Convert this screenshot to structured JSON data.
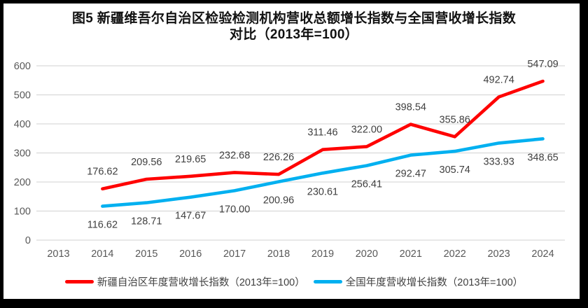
{
  "title": {
    "line1": "图5  新疆维吾尔自治区检验检测机构营收总额增长指数与全国营收增长指数",
    "line2": "对比（2013年=100）"
  },
  "colors": {
    "xinjiang_line": "#ff0000",
    "national_line": "#00b0f0",
    "gridline": "#d9d9d9",
    "axis_text": "#595959",
    "label_text": "#404040",
    "title_text": "#111111",
    "frame_border": "#000000"
  },
  "chart_data": {
    "type": "line",
    "categories": [
      "2013",
      "2014",
      "2015",
      "2016",
      "2017",
      "2018",
      "2019",
      "2020",
      "2021",
      "2022",
      "2023",
      "2024"
    ],
    "series": [
      {
        "id": "xinjiang",
        "name": "新疆自治区年度营收增长指数（2013年=100）",
        "color": "#ff0000",
        "label_position": "above",
        "values": [
          null,
          176.62,
          209.56,
          219.65,
          232.68,
          226.26,
          311.46,
          322.0,
          398.54,
          355.86,
          492.74,
          547.09
        ]
      },
      {
        "id": "national",
        "name": "全国年度营收增长指数（2013年=100）",
        "color": "#00b0f0",
        "label_position": "below",
        "values": [
          null,
          116.62,
          128.71,
          147.67,
          170.0,
          200.96,
          230.61,
          256.41,
          292.47,
          305.74,
          333.93,
          348.65
        ]
      }
    ],
    "ylim": [
      0,
      600
    ],
    "ytick_step": 100,
    "yticks": [
      0,
      100,
      200,
      300,
      400,
      500,
      600
    ],
    "grid": true,
    "legend_position": "bottom",
    "title": "图5 新疆维吾尔自治区检验检测机构营收总额增长指数与全国营收增长指数对比（2013年=100）",
    "xlabel": "",
    "ylabel": ""
  }
}
